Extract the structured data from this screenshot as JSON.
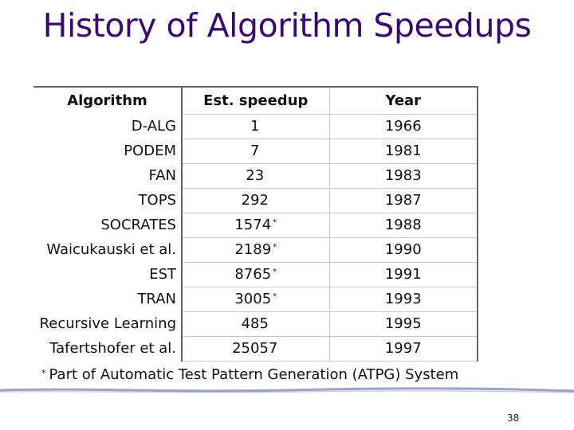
{
  "slide": {
    "title": "History of Algorithm Speedups",
    "page_number": "38"
  },
  "table": {
    "headers": [
      "Algorithm",
      "Est. speedup",
      "Year"
    ],
    "rows": [
      {
        "algorithm": "D-ALG",
        "speedup": "1",
        "mark": "",
        "year": "1966"
      },
      {
        "algorithm": "PODEM",
        "speedup": "7",
        "mark": "",
        "year": "1981"
      },
      {
        "algorithm": "FAN",
        "speedup": "23",
        "mark": "",
        "year": "1983"
      },
      {
        "algorithm": "TOPS",
        "speedup": "292",
        "mark": "",
        "year": "1987"
      },
      {
        "algorithm": "SOCRATES",
        "speedup": "1574",
        "mark": "*",
        "year": "1988"
      },
      {
        "algorithm": "Waicukauski et al.",
        "speedup": "2189",
        "mark": "*",
        "year": "1990"
      },
      {
        "algorithm": "EST",
        "speedup": "8765",
        "mark": "*",
        "year": "1991"
      },
      {
        "algorithm": "TRAN",
        "speedup": "3005",
        "mark": "*",
        "year": "1993"
      },
      {
        "algorithm": "Recursive Learning",
        "speedup": "485",
        "mark": "",
        "year": "1995"
      },
      {
        "algorithm": "Tafertshofer et al.",
        "speedup": "25057",
        "mark": "",
        "year": "1997"
      }
    ]
  },
  "footnote": {
    "mark": "*",
    "text": "Part of Automatic Test Pattern Generation (ATPG) System"
  },
  "colors": {
    "title": "#3a0a6b",
    "rule": "#9aa3c8"
  }
}
